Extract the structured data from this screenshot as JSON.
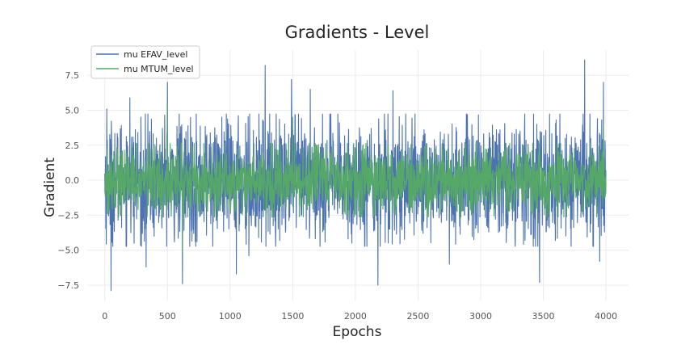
{
  "chart_data": {
    "type": "line",
    "title": "Gradients - Level",
    "xlabel": "Epochs",
    "ylabel": "Gradient",
    "xlim": [
      -140,
      4180
    ],
    "ylim": [
      -8.6,
      9.3
    ],
    "xticks": [
      0,
      500,
      1000,
      1500,
      2000,
      2500,
      3000,
      3500,
      4000
    ],
    "yticks": [
      -7.5,
      -5.0,
      -2.5,
      0.0,
      2.5,
      5.0,
      7.5
    ],
    "xtick_labels": [
      "0",
      "500",
      "1000",
      "1500",
      "2000",
      "2500",
      "3000",
      "3500",
      "4000"
    ],
    "ytick_labels": [
      "−7.5",
      "−5.0",
      "−2.5",
      "0.0",
      "2.5",
      "5.0",
      "7.5"
    ],
    "grid": true,
    "legend_position": "top-left",
    "series": [
      {
        "name": "mu EFAV_level",
        "color": "#4c72b0",
        "x_range": [
          0,
          4000
        ],
        "typical_range": [
          -4.5,
          4.5
        ],
        "spikes": [
          {
            "x": 15,
            "y": 5.1
          },
          {
            "x": 50,
            "y": -7.9
          },
          {
            "x": 200,
            "y": 5.9
          },
          {
            "x": 300,
            "y": -3.8
          },
          {
            "x": 330,
            "y": -6.2
          },
          {
            "x": 500,
            "y": 7.0
          },
          {
            "x": 620,
            "y": -7.4
          },
          {
            "x": 1050,
            "y": -6.7
          },
          {
            "x": 1150,
            "y": -5.4
          },
          {
            "x": 1280,
            "y": 8.2
          },
          {
            "x": 1490,
            "y": 7.2
          },
          {
            "x": 1640,
            "y": 6.5
          },
          {
            "x": 2180,
            "y": -7.5
          },
          {
            "x": 2300,
            "y": 6.4
          },
          {
            "x": 2750,
            "y": -6.0
          },
          {
            "x": 3470,
            "y": -7.3
          },
          {
            "x": 3830,
            "y": 8.6
          },
          {
            "x": 3950,
            "y": -5.8
          },
          {
            "x": 3980,
            "y": 7.0
          }
        ]
      },
      {
        "name": "mu MTUM_level",
        "color": "#55a868",
        "x_range": [
          0,
          4000
        ],
        "typical_range": [
          -2.5,
          2.5
        ],
        "spikes": [
          {
            "x": 500,
            "y": 5.5
          },
          {
            "x": 620,
            "y": -5.2
          },
          {
            "x": 1500,
            "y": 4.5
          },
          {
            "x": 3980,
            "y": 4.0
          }
        ]
      }
    ]
  }
}
